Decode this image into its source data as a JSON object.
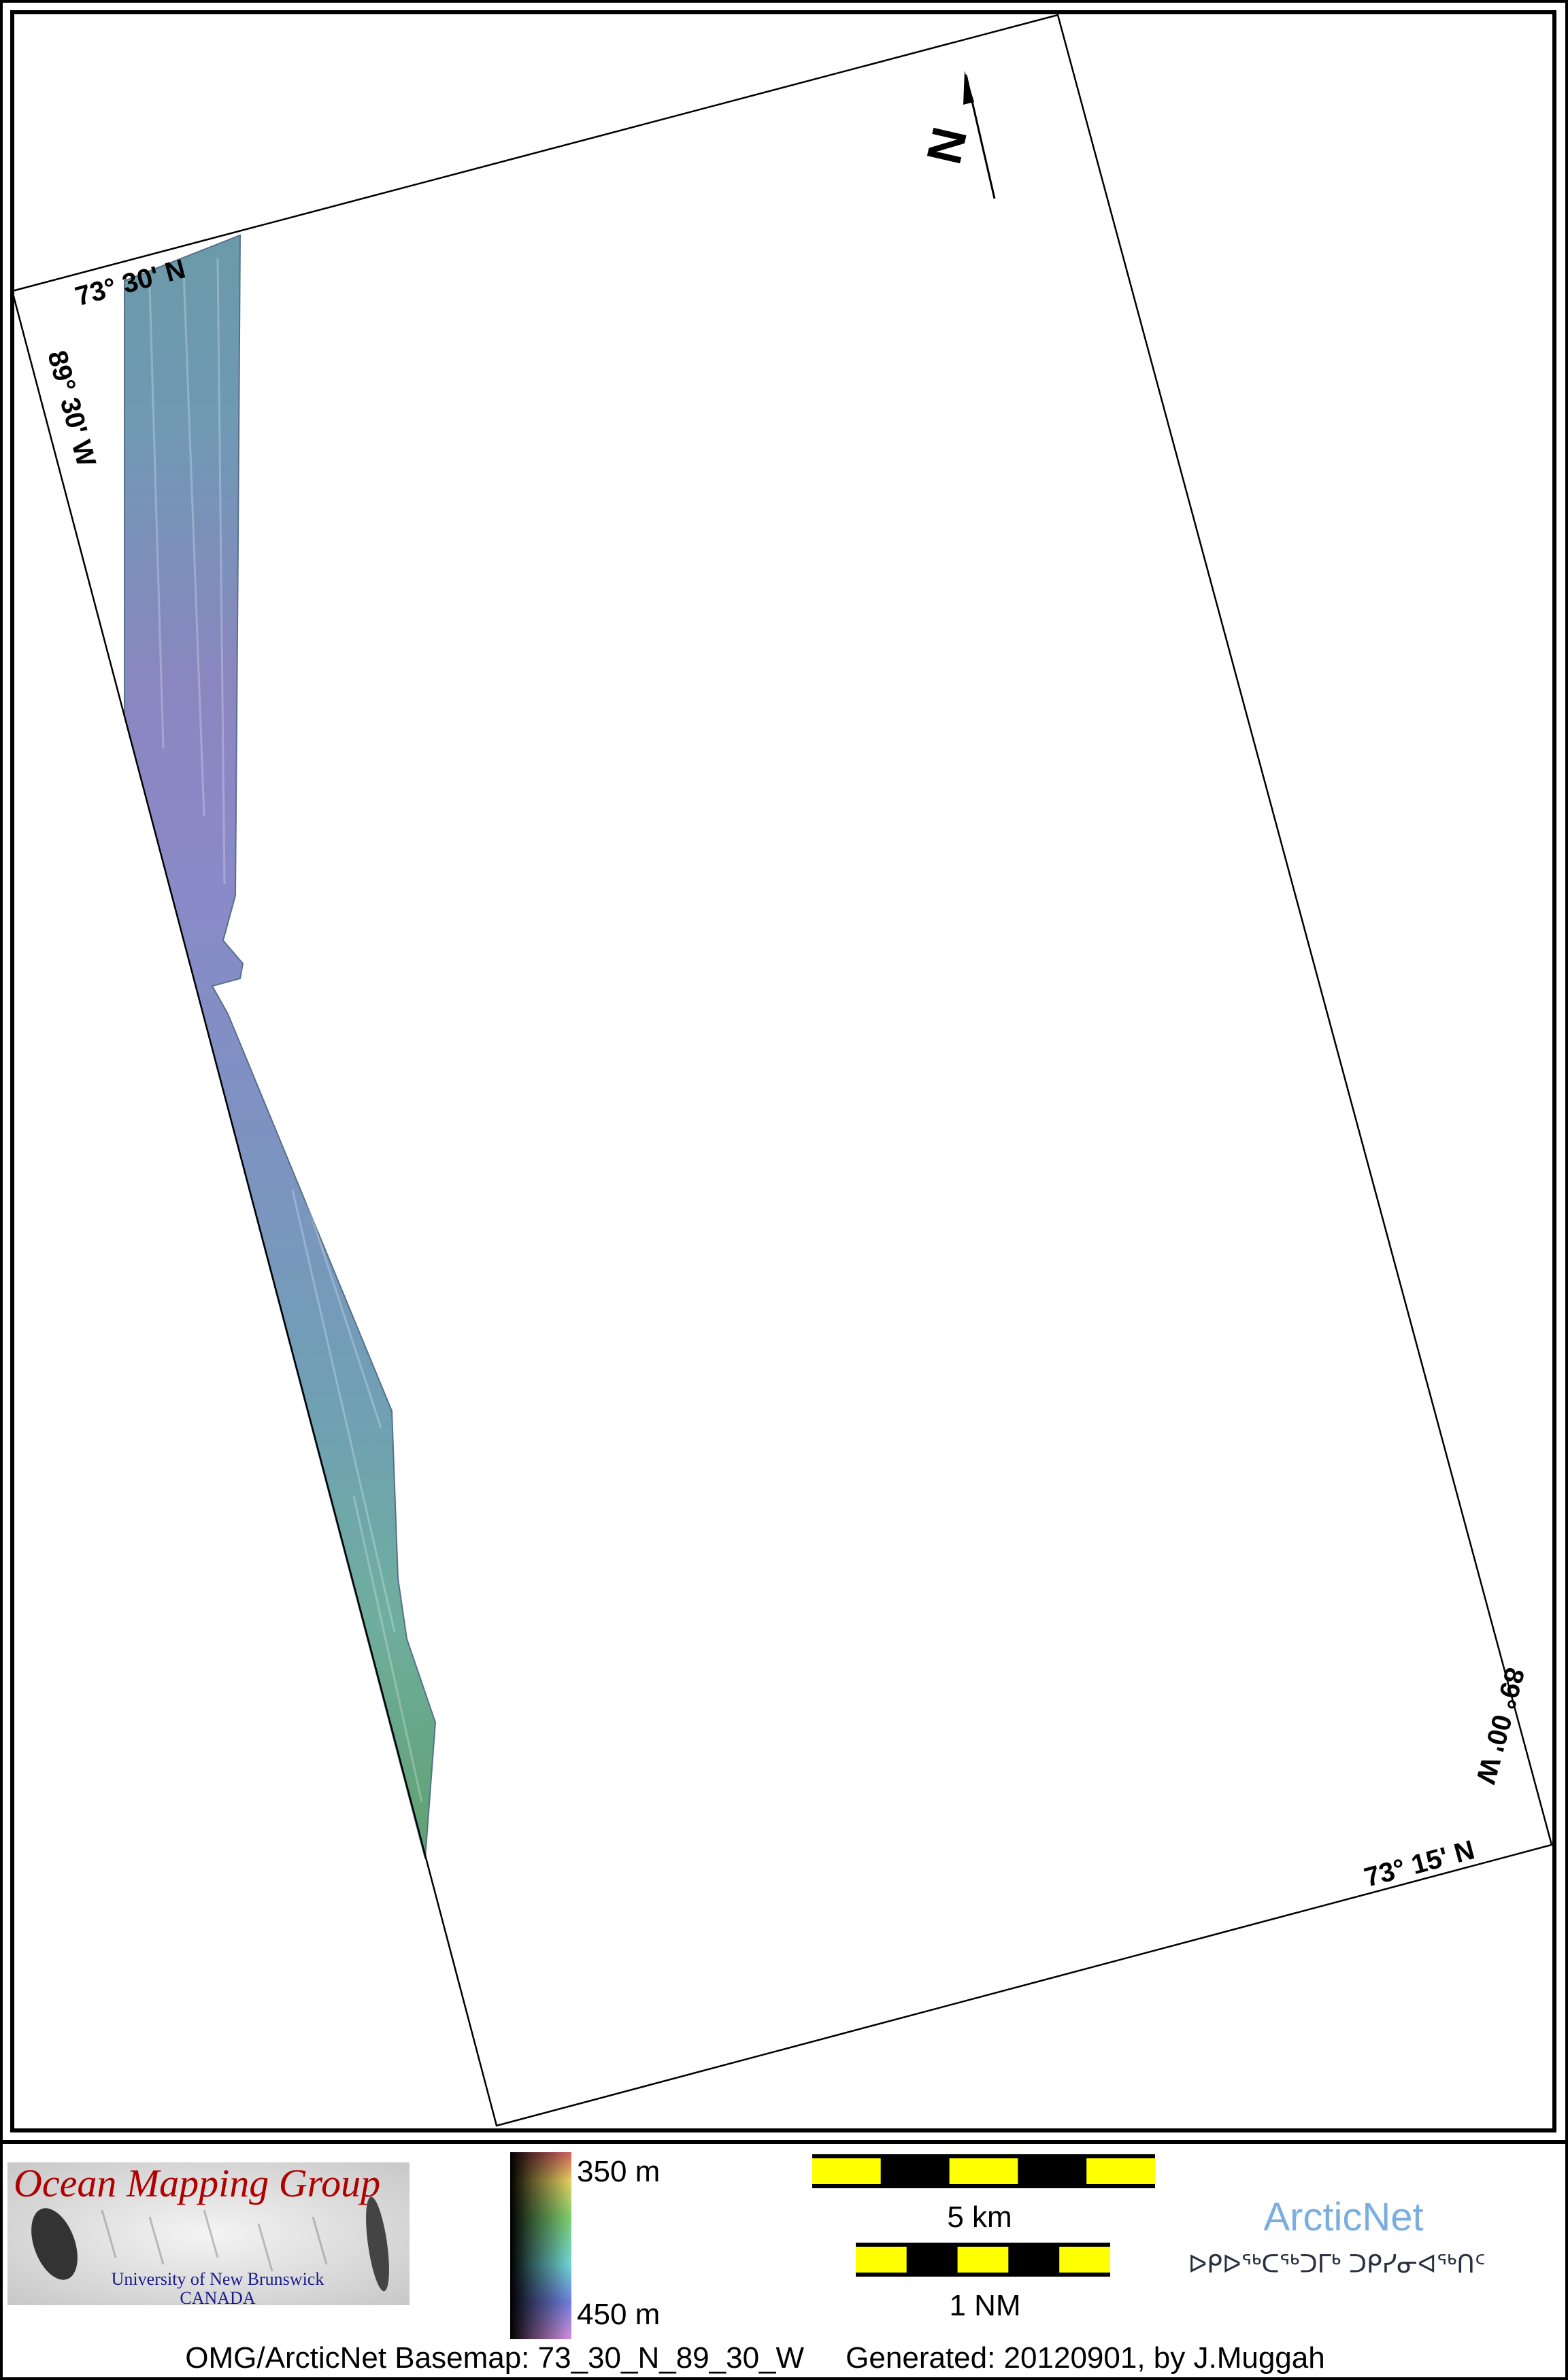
{
  "map": {
    "graticule_labels": {
      "top_lat": "73° 30' N",
      "left_lon": "89° 30' W",
      "bottom_lat": "73° 15' N",
      "right_lon": "89° 00' W"
    },
    "north_arrow_label": "N"
  },
  "legend": {
    "logo": {
      "title": "Ocean Mapping Group",
      "line1": "University of New Brunswick",
      "line2": "CANADA"
    },
    "colorbar": {
      "top_label": "350 m",
      "bottom_label": "450 m"
    },
    "scalebars": [
      {
        "label": "5 km",
        "segments": 5
      },
      {
        "label": "1 NM",
        "segments": 5
      }
    ],
    "arcticnet": {
      "name": "ArcticNet",
      "syllabics": "ᐅᑭᐅᖅᑕᖅᑐᒥᒃ ᑐᑭᓯᓂᐊᖅᑎᑦ",
      "color": "#7aaee0"
    },
    "footer": "OMG/ArcticNet Basemap: 73_30_N_89_30_W     Generated: 20120901, by J.Muggah"
  }
}
